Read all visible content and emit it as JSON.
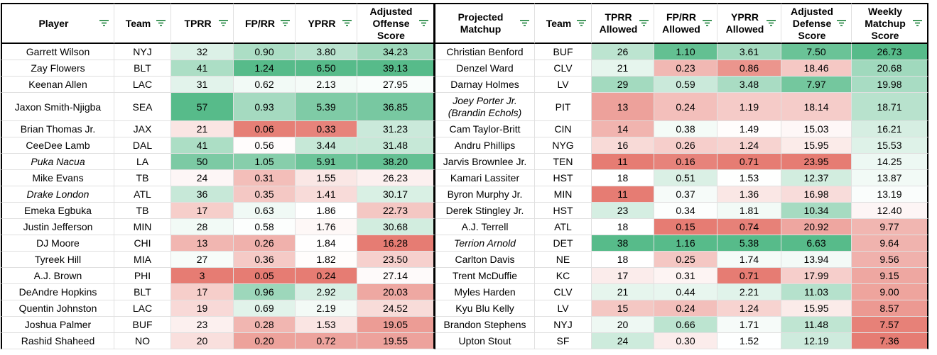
{
  "headers": [
    {
      "key": "player",
      "label": "Player",
      "width": 160
    },
    {
      "key": "team",
      "label": "Team",
      "width": 80
    },
    {
      "key": "tprr",
      "label": "TPRR",
      "width": 88
    },
    {
      "key": "fprr",
      "label": "FP/RR",
      "width": 87
    },
    {
      "key": "yprr",
      "label": "YPRR",
      "width": 87
    },
    {
      "key": "aos",
      "label": "Adjusted Offense Score",
      "width": 110
    },
    {
      "key": "matchup",
      "label": "Projected Matchup",
      "width": 140
    },
    {
      "key": "mteam",
      "label": "Team",
      "width": 80
    },
    {
      "key": "tprra",
      "label": "TPRR Allowed",
      "width": 88
    },
    {
      "key": "fprra",
      "label": "FP/RR Allowed",
      "width": 89
    },
    {
      "key": "yprra",
      "label": "YPRR Allowed",
      "width": 90
    },
    {
      "key": "ads",
      "label": "Adjusted Defense Score",
      "width": 99
    },
    {
      "key": "wms",
      "label": "Weekly Matchup Score",
      "width": 108
    }
  ],
  "colors": {
    "green": "#57bb8a",
    "white": "#ffffff",
    "red": "#e67c73"
  },
  "rows": [
    {
      "player": "Garrett Wilson",
      "team": "NYJ",
      "tprr": "32",
      "fprr": "0.90",
      "yprr": "3.80",
      "aos": "34.23",
      "matchup": "Christian Benford",
      "mteam": "BUF",
      "tprra": "26",
      "fprra": "1.10",
      "yprra": "3.61",
      "ads": "7.50",
      "wms": "26.73"
    },
    {
      "player": "Zay Flowers",
      "team": "BLT",
      "tprr": "41",
      "fprr": "1.24",
      "yprr": "6.50",
      "aos": "39.13",
      "matchup": "Denzel Ward",
      "mteam": "CLV",
      "tprra": "21",
      "fprra": "0.23",
      "yprra": "0.86",
      "ads": "18.46",
      "wms": "20.68"
    },
    {
      "player": "Keenan Allen",
      "team": "LAC",
      "tprr": "31",
      "fprr": "0.62",
      "yprr": "2.13",
      "aos": "27.95",
      "matchup": "Darnay Holmes",
      "mteam": "LV",
      "tprra": "29",
      "fprra": "0.59",
      "yprra": "3.48",
      "ads": "7.97",
      "wms": "19.98"
    },
    {
      "player": "Jaxon Smith-Njigba",
      "team": "SEA",
      "tprr": "57",
      "fprr": "0.93",
      "yprr": "5.39",
      "aos": "36.85",
      "matchup": "Joey Porter Jr. (Brandin Echols)",
      "matchup_italic": true,
      "tall": true,
      "mteam": "PIT",
      "tprra": "13",
      "fprra": "0.24",
      "yprra": "1.19",
      "ads": "18.14",
      "wms": "18.71"
    },
    {
      "player": "Brian Thomas Jr.",
      "team": "JAX",
      "tprr": "21",
      "fprr": "0.06",
      "yprr": "0.33",
      "aos": "31.23",
      "matchup": "Cam Taylor-Britt",
      "mteam": "CIN",
      "tprra": "14",
      "fprra": "0.38",
      "yprra": "1.49",
      "ads": "15.03",
      "wms": "16.21"
    },
    {
      "player": "CeeDee Lamb",
      "team": "DAL",
      "tprr": "41",
      "fprr": "0.56",
      "yprr": "3.44",
      "aos": "31.48",
      "matchup": "Andru Phillips",
      "mteam": "NYG",
      "tprra": "16",
      "fprra": "0.26",
      "yprra": "1.24",
      "ads": "15.95",
      "wms": "15.53"
    },
    {
      "player": "Puka Nacua",
      "player_italic": true,
      "team": "LA",
      "tprr": "50",
      "fprr": "1.05",
      "yprr": "5.91",
      "aos": "38.20",
      "matchup": "Jarvis Brownlee Jr.",
      "mteam": "TEN",
      "tprra": "11",
      "fprra": "0.16",
      "yprra": "0.71",
      "ads": "23.95",
      "wms": "14.25"
    },
    {
      "player": "Mike Evans",
      "team": "TB",
      "tprr": "24",
      "fprr": "0.31",
      "yprr": "1.55",
      "aos": "26.23",
      "matchup": "Kamari Lassiter",
      "mteam": "HST",
      "tprra": "18",
      "fprra": "0.51",
      "yprra": "1.53",
      "ads": "12.37",
      "wms": "13.87"
    },
    {
      "player": "Drake London",
      "player_italic": true,
      "team": "ATL",
      "tprr": "36",
      "fprr": "0.35",
      "yprr": "1.41",
      "aos": "30.17",
      "matchup": "Byron Murphy Jr.",
      "mteam": "MIN",
      "tprra": "11",
      "fprra": "0.37",
      "yprra": "1.36",
      "ads": "16.98",
      "wms": "13.19"
    },
    {
      "player": "Emeka Egbuka",
      "team": "TB",
      "tprr": "17",
      "fprr": "0.63",
      "yprr": "1.86",
      "aos": "22.73",
      "matchup": "Derek Stingley Jr.",
      "mteam": "HST",
      "tprra": "23",
      "fprra": "0.34",
      "yprra": "1.81",
      "ads": "10.34",
      "wms": "12.40"
    },
    {
      "player": "Justin Jefferson",
      "team": "MIN",
      "tprr": "28",
      "fprr": "0.58",
      "yprr": "1.76",
      "aos": "30.68",
      "matchup": "A.J. Terrell",
      "mteam": "ATL",
      "tprra": "18",
      "fprra": "0.15",
      "yprra": "0.74",
      "ads": "20.92",
      "wms": "9.77"
    },
    {
      "player": "DJ Moore",
      "team": "CHI",
      "tprr": "13",
      "fprr": "0.26",
      "yprr": "1.84",
      "aos": "16.28",
      "matchup": "Terrion Arnold",
      "matchup_italic": true,
      "mteam": "DET",
      "tprra": "38",
      "fprra": "1.16",
      "yprra": "5.38",
      "ads": "6.63",
      "wms": "9.64"
    },
    {
      "player": "Tyreek Hill",
      "team": "MIA",
      "tprr": "27",
      "fprr": "0.36",
      "yprr": "1.82",
      "aos": "23.50",
      "matchup": "Carlton Davis",
      "mteam": "NE",
      "tprra": "18",
      "fprra": "0.25",
      "yprra": "1.74",
      "ads": "13.94",
      "wms": "9.56"
    },
    {
      "player": "A.J. Brown",
      "team": "PHI",
      "tprr": "3",
      "fprr": "0.05",
      "yprr": "0.24",
      "aos": "27.14",
      "matchup": "Trent McDuffie",
      "mteam": "KC",
      "tprra": "17",
      "fprra": "0.31",
      "yprra": "0.71",
      "ads": "17.99",
      "wms": "9.15"
    },
    {
      "player": "DeAndre Hopkins",
      "team": "BLT",
      "tprr": "17",
      "fprr": "0.96",
      "yprr": "2.92",
      "aos": "20.03",
      "matchup": "Myles Harden",
      "mteam": "CLV",
      "tprra": "21",
      "fprra": "0.44",
      "yprra": "2.21",
      "ads": "11.03",
      "wms": "9.00"
    },
    {
      "player": "Quentin Johnston",
      "team": "LAC",
      "tprr": "19",
      "fprr": "0.69",
      "yprr": "2.19",
      "aos": "24.52",
      "matchup": "Kyu Blu Kelly",
      "mteam": "LV",
      "tprra": "15",
      "fprra": "0.24",
      "yprra": "1.24",
      "ads": "15.95",
      "wms": "8.57"
    },
    {
      "player": "Joshua Palmer",
      "team": "BUF",
      "tprr": "23",
      "fprr": "0.28",
      "yprr": "1.53",
      "aos": "19.05",
      "matchup": "Brandon Stephens",
      "mteam": "NYJ",
      "tprra": "20",
      "fprra": "0.66",
      "yprra": "1.71",
      "ads": "11.48",
      "wms": "7.57"
    },
    {
      "player": "Rashid Shaheed",
      "team": "NO",
      "tprr": "20",
      "fprr": "0.20",
      "yprr": "0.72",
      "aos": "19.55",
      "matchup": "Upton Stout",
      "mteam": "SF",
      "tprra": "24",
      "fprra": "0.30",
      "yprra": "1.52",
      "ads": "12.19",
      "wms": "7.36"
    }
  ]
}
